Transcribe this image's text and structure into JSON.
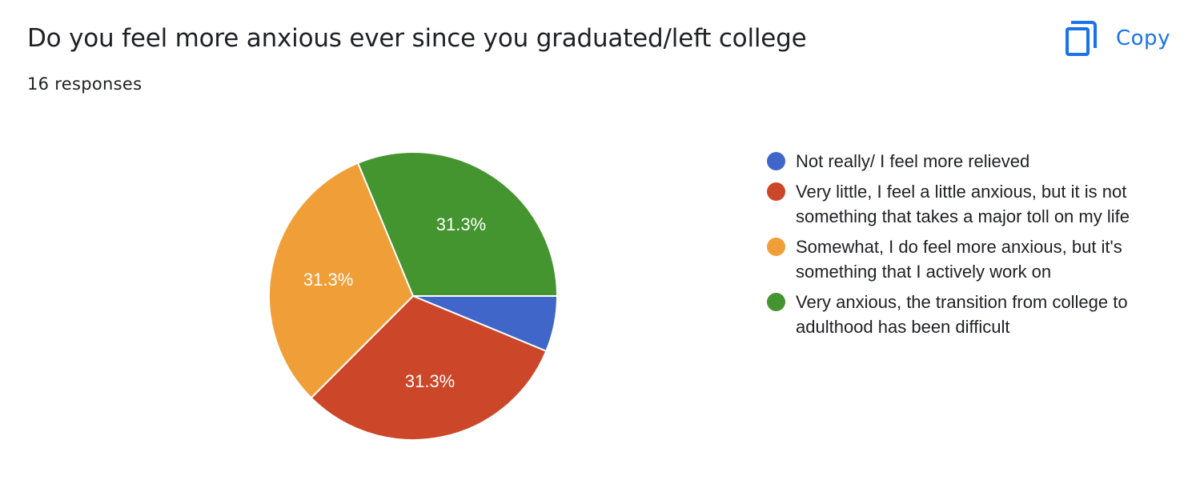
{
  "header": {
    "title": "Do you feel more anxious ever since you graduated/left college",
    "responses": "16 responses",
    "copy_label": "Copy",
    "copy_icon": "copy-icon"
  },
  "chart_data": {
    "type": "pie",
    "total_responses": 16,
    "slices": [
      {
        "label": "Not really/ I feel more relieved",
        "count": 1,
        "percent": 6.3,
        "color": "#4066c9",
        "data_label": ""
      },
      {
        "label": "Very little, I feel a little anxious, but it is not something that takes a major toll on my life",
        "count": 5,
        "percent": 31.3,
        "color": "#cc4729",
        "data_label": "31.3%"
      },
      {
        "label": "Somewhat, I do feel more anxious, but it's something that I actively work on",
        "count": 5,
        "percent": 31.3,
        "color": "#f09f38",
        "data_label": "31.3%"
      },
      {
        "label": "Very anxious, the transition from college to adulthood has been difficult",
        "count": 5,
        "percent": 31.3,
        "color": "#44952f",
        "data_label": "31.3%"
      }
    ],
    "legend_position": "right"
  },
  "colors": {
    "accent": "#1a73e8",
    "text": "#202124"
  }
}
